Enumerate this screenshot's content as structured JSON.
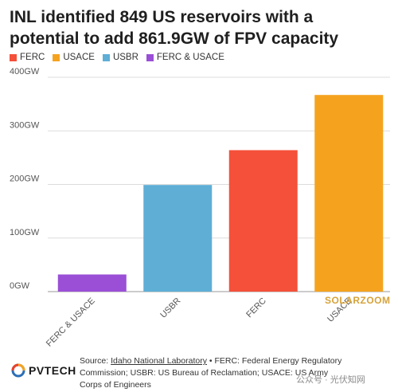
{
  "title": "INL identified 849 US reservoirs with a potential to add 861.9GW of FPV capacity",
  "legend": [
    {
      "label": "FERC",
      "color": "#f4503a"
    },
    {
      "label": "USACE",
      "color": "#f5a31f"
    },
    {
      "label": "USBR",
      "color": "#5eaed6"
    },
    {
      "label": "FERC & USACE",
      "color": "#9a4fd6"
    }
  ],
  "chart_data": {
    "type": "bar",
    "categories": [
      "FERC & USACE",
      "USBR",
      "FERC",
      "USACE"
    ],
    "values": [
      32,
      199,
      264,
      367
    ],
    "colors": [
      "#9a4fd6",
      "#5eaed6",
      "#f4503a",
      "#f5a31f"
    ],
    "ylim": [
      0,
      400
    ],
    "yticks": [
      0,
      100,
      200,
      300,
      400
    ],
    "ytick_labels": [
      "0GW",
      "100GW",
      "200GW",
      "300GW",
      "400GW"
    ],
    "grid": true,
    "legend": "top-left"
  },
  "footer": {
    "logo_text": "PVTECH",
    "source_prefix": "Source: ",
    "source_link": "Idaho National Laboratory",
    "source_rest": " • FERC: Federal Energy Regulatory Commission; USBR: US Bureau of Reclamation; USACE: US Army Corps of Engineers"
  },
  "watermarks": {
    "brand": "SOLARZOOM",
    "account": "公众号 · 光伏知网"
  }
}
